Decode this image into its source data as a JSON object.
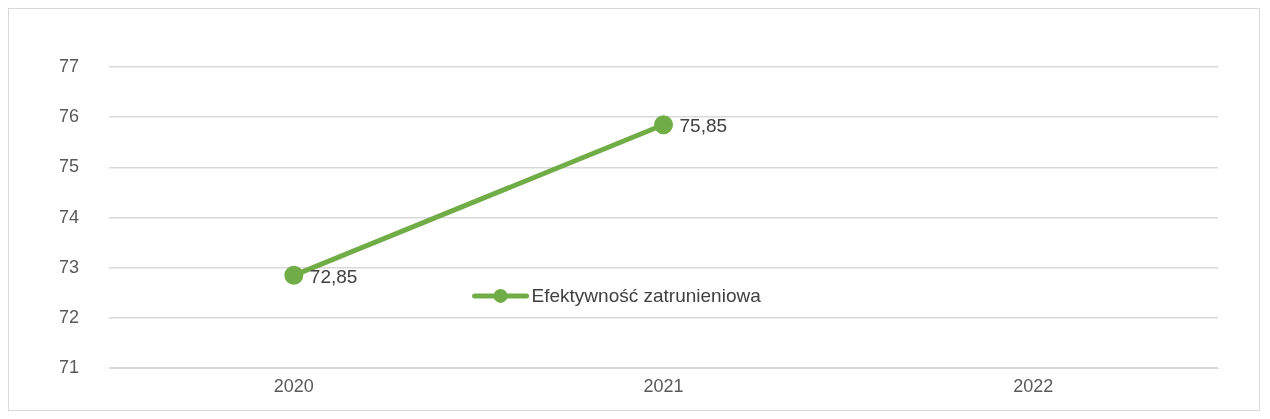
{
  "chart_data": {
    "type": "line",
    "categories": [
      "2020",
      "2021",
      "2022"
    ],
    "series": [
      {
        "name": "Efektywność zatrunieniowa",
        "color": "#70ad47",
        "values": [
          72.85,
          75.85,
          null
        ],
        "value_labels": [
          "72,85",
          "75,85",
          null
        ]
      }
    ],
    "ylim": [
      71,
      77
    ],
    "yticks": [
      71,
      72,
      73,
      74,
      75,
      76,
      77
    ],
    "grid": "y",
    "legend": "bottom",
    "marker": "circle",
    "line_style": "solid"
  }
}
